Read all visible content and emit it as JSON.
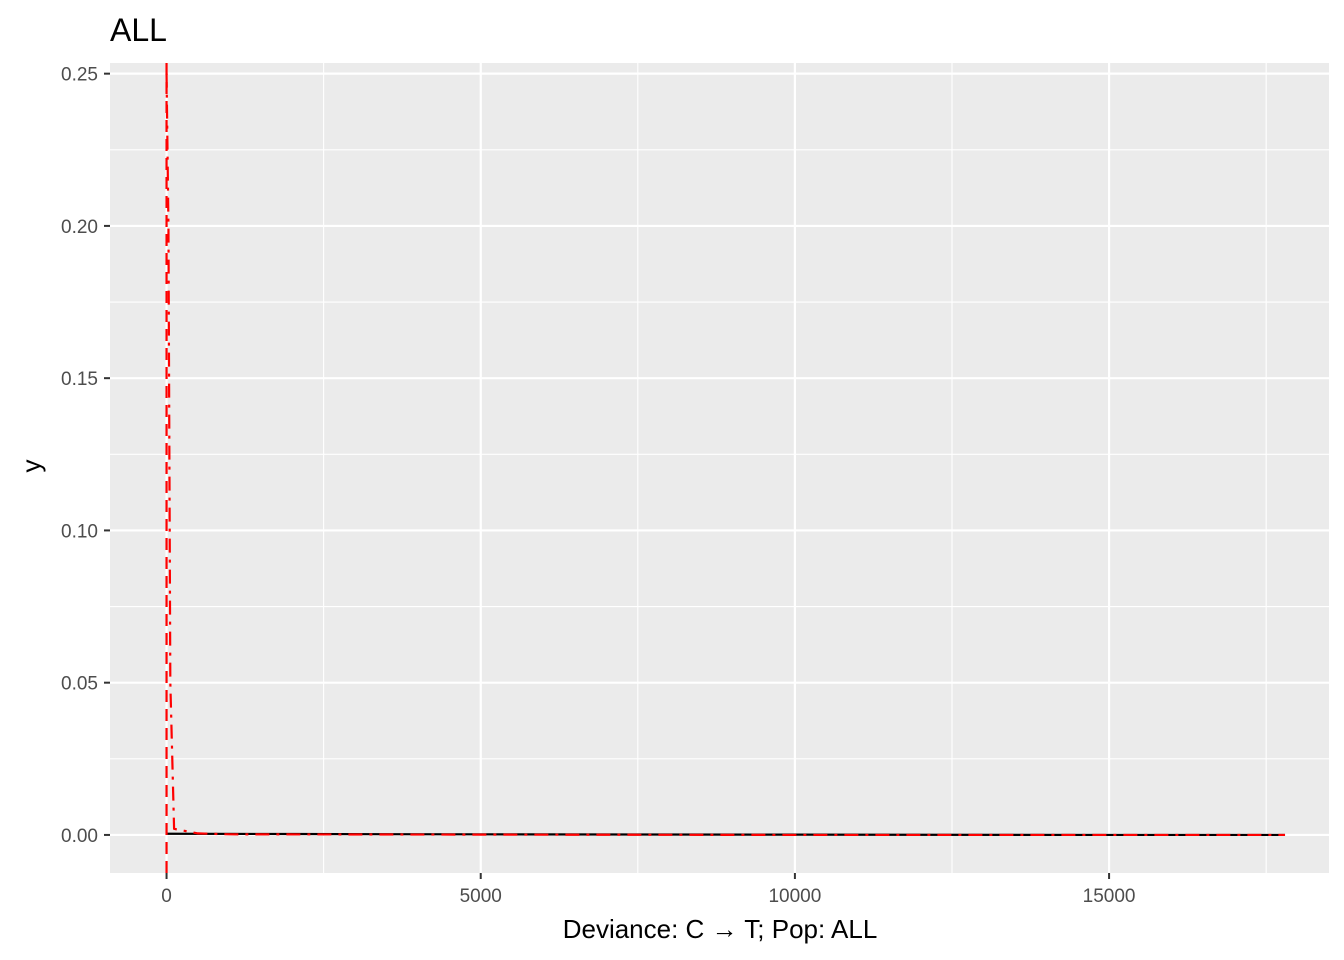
{
  "chart_data": {
    "type": "line",
    "title": "ALL",
    "xlabel": "Deviance: C → T; Pop: ALL",
    "ylabel": "y",
    "xlim": [
      -900,
      18500
    ],
    "ylim": [
      -0.0125,
      0.2535
    ],
    "x_ticks": [
      0,
      5000,
      10000,
      15000
    ],
    "x_tick_labels": [
      "0",
      "5000",
      "10000",
      "15000"
    ],
    "y_ticks": [
      0.0,
      0.05,
      0.1,
      0.15,
      0.2,
      0.25
    ],
    "y_tick_labels": [
      "0.00",
      "0.05",
      "0.10",
      "0.15",
      "0.20",
      "0.25"
    ],
    "grid": true,
    "legend": "none",
    "series": [
      {
        "style": "solid",
        "color": "#000000",
        "x": [
          0,
          2000,
          5000,
          10000,
          15000,
          17800
        ],
        "y": [
          0.0004,
          0.0003,
          0.0002,
          0.0001,
          0.0,
          0.0
        ]
      },
      {
        "style": "dashed",
        "color": "#ff0000",
        "x": [
          0,
          30,
          60,
          120,
          500,
          1000,
          5000,
          10000,
          15000,
          17800
        ],
        "y": [
          0.25,
          0.2,
          0.05,
          0.002,
          0.0005,
          0.0002,
          0.0001,
          0.0,
          0.0,
          0.0
        ]
      }
    ],
    "reference_lines": [
      {
        "axis": "x",
        "value": 0,
        "color": "#ff0000",
        "style": "dashed"
      }
    ]
  }
}
